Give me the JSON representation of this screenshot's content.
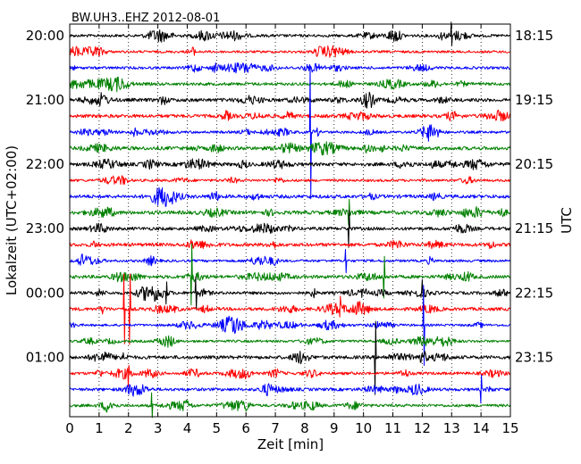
{
  "chart_data": {
    "type": "line",
    "title": "BW.UH3..EHZ 2012-08-01",
    "xlabel": "Zeit  [min]",
    "ylabel_left": "Lokalzeit (UTC+02:00)",
    "ylabel_right": "UTC",
    "xlim": [
      0,
      15
    ],
    "x_ticks": [
      "0",
      "1",
      "2",
      "3",
      "4",
      "5",
      "6",
      "7",
      "8",
      "9",
      "10",
      "11",
      "12",
      "13",
      "14",
      "15"
    ],
    "grid": "vertical dotted at each minute",
    "left_tick_labels": [
      "20:00",
      "21:00",
      "22:00",
      "23:00",
      "00:00",
      "01:00"
    ],
    "right_tick_labels": [
      "18:15",
      "19:15",
      "20:15",
      "21:15",
      "22:15",
      "23:15"
    ],
    "trace_color_cycle": [
      "#000000",
      "#ff0000",
      "#0000ff",
      "#008000"
    ],
    "trace_count": 24,
    "trace_interval_minutes": 15,
    "traces": [
      {
        "color": "#000000",
        "spikes": [
          {
            "x": 13.0,
            "amp": 0.9
          }
        ]
      },
      {
        "color": "#ff0000",
        "spikes": []
      },
      {
        "color": "#0000ff",
        "spikes": []
      },
      {
        "color": "#008000",
        "spikes": []
      },
      {
        "color": "#000000",
        "spikes": []
      },
      {
        "color": "#ff0000",
        "spikes": []
      },
      {
        "color": "#0000ff",
        "spikes": [
          {
            "x": 8.2,
            "amp": 4.5
          }
        ]
      },
      {
        "color": "#008000",
        "spikes": []
      },
      {
        "color": "#000000",
        "spikes": []
      },
      {
        "color": "#ff0000",
        "spikes": []
      },
      {
        "color": "#0000ff",
        "spikes": []
      },
      {
        "color": "#008000",
        "spikes": [
          {
            "x": 9.5,
            "amp": 0.8
          }
        ]
      },
      {
        "color": "#000000",
        "spikes": [
          {
            "x": 9.5,
            "amp": 1.3
          }
        ]
      },
      {
        "color": "#ff0000",
        "spikes": []
      },
      {
        "color": "#0000ff",
        "spikes": [
          {
            "x": 9.4,
            "amp": 0.8
          }
        ]
      },
      {
        "color": "#008000",
        "spikes": [
          {
            "x": 4.15,
            "amp": 2.0
          },
          {
            "x": 10.7,
            "amp": 1.5
          }
        ]
      },
      {
        "color": "#000000",
        "spikes": [
          {
            "x": 3.3,
            "amp": 0.8
          },
          {
            "x": 4.3,
            "amp": 1.0
          },
          {
            "x": 12.0,
            "amp": 0.7
          }
        ]
      },
      {
        "color": "#ff0000",
        "spikes": [
          {
            "x": 1.85,
            "amp": 2.5
          },
          {
            "x": 2.05,
            "amp": 2.5
          },
          {
            "x": 9.2,
            "amp": 0.7
          }
        ]
      },
      {
        "color": "#0000ff",
        "spikes": [
          {
            "x": 12.05,
            "amp": 2.8
          }
        ]
      },
      {
        "color": "#008000",
        "spikes": []
      },
      {
        "color": "#000000",
        "spikes": [
          {
            "x": 10.4,
            "amp": 2.5
          }
        ]
      },
      {
        "color": "#ff0000",
        "spikes": [
          {
            "x": 2.0,
            "amp": 0.8
          }
        ]
      },
      {
        "color": "#0000ff",
        "spikes": [
          {
            "x": 14.0,
            "amp": 1.0
          }
        ]
      },
      {
        "color": "#008000",
        "spikes": [
          {
            "x": 2.8,
            "amp": 0.8
          }
        ]
      }
    ]
  }
}
